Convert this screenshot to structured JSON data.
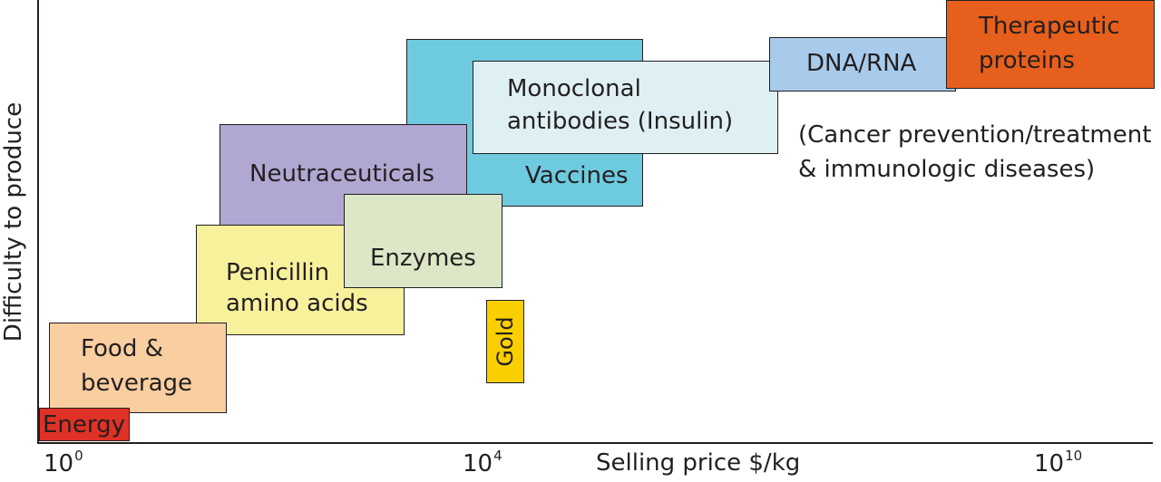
{
  "axis": {
    "ylabel": "Difficulty to produce",
    "xlabel": "Selling price $/kg",
    "ticks": [
      {
        "base": "10",
        "exp": "0"
      },
      {
        "base": "10",
        "exp": "4"
      },
      {
        "base": "10",
        "exp": "10"
      }
    ]
  },
  "boxes": {
    "energy": {
      "label": "Energy",
      "color": "#e03127"
    },
    "food": {
      "line1": "Food &",
      "line2": "beverage",
      "color": "#f9cea0"
    },
    "penicillin": {
      "line1": "Penicillin",
      "line2": "amino acids",
      "color": "#f7f19c"
    },
    "enzymes": {
      "label": "Enzymes",
      "color": "#dbe7c6"
    },
    "neutraceuticals": {
      "label": "Neutraceuticals",
      "color": "#b0a7d2"
    },
    "vaccines": {
      "label": "Vaccines",
      "color": "#6ecadf"
    },
    "monoclonal": {
      "line1": "Monoclonal",
      "line2": "antibodies (Insulin)",
      "color": "#dff0f4"
    },
    "gold": {
      "label": "Gold",
      "color": "#f9cf00"
    },
    "dna": {
      "label": "DNA/RNA",
      "color": "#a8cbec"
    },
    "therapeutic": {
      "line1": "Therapeutic",
      "line2": "proteins",
      "color": "#e75f1c"
    }
  },
  "note": {
    "line1": "(Cancer prevention/treatment",
    "line2": "& immunologic diseases)"
  }
}
